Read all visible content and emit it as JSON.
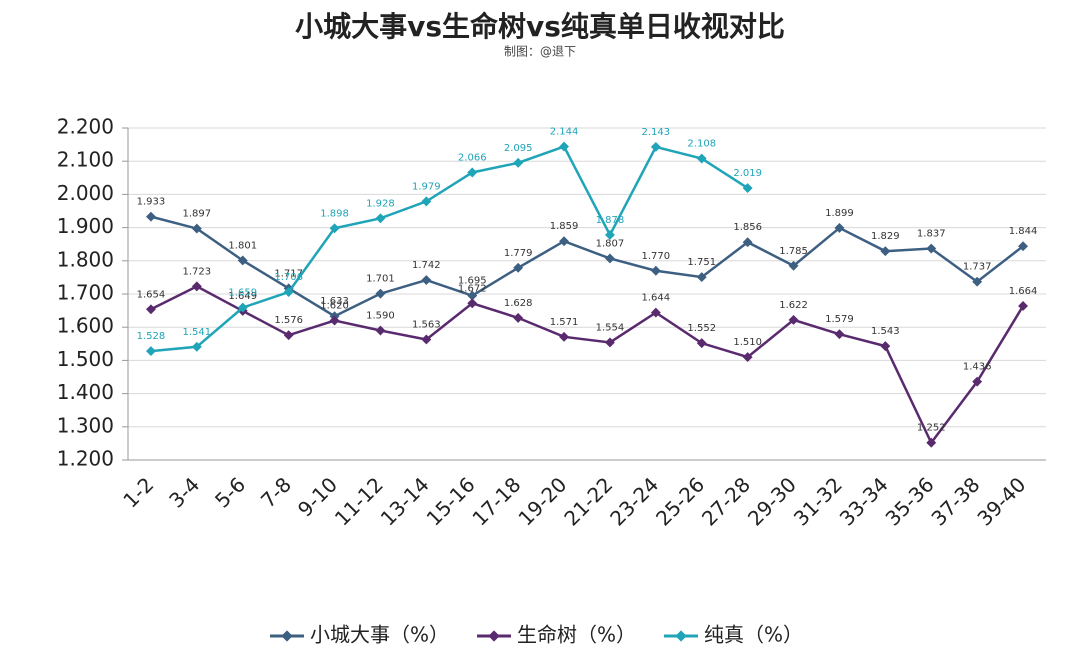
{
  "chart_data": {
    "type": "line",
    "title": "小城大事vs生命树vs纯真单日收视对比",
    "subtitle": "制图：@退下",
    "categories": [
      "1-2",
      "3-4",
      "5-6",
      "7-8",
      "9-10",
      "11-12",
      "13-14",
      "15-16",
      "17-18",
      "19-20",
      "21-22",
      "23-24",
      "25-26",
      "27-28",
      "29-30",
      "31-32",
      "33-34",
      "35-36",
      "37-38",
      "39-40"
    ],
    "series": [
      {
        "name": "小城大事（%）",
        "color": "#3d5f82",
        "values": [
          1.933,
          1.897,
          1.801,
          1.717,
          1.633,
          1.701,
          1.742,
          1.695,
          1.779,
          1.859,
          1.807,
          1.77,
          1.751,
          1.856,
          1.785,
          1.899,
          1.829,
          1.837,
          1.737,
          1.844
        ],
        "value_labels": [
          "1.933",
          "1.897",
          "1.801",
          "1.717",
          "1.633",
          "1.701",
          "1.742",
          "1.695",
          "1.779",
          "1.859",
          "1.807",
          "1.770",
          "1.751",
          "1.856",
          "1.785",
          "1.899",
          "1.829",
          "1.837",
          "1.737",
          "1.844"
        ]
      },
      {
        "name": "生命树（%）",
        "color": "#5a2a6e",
        "values": [
          1.654,
          1.723,
          1.649,
          1.576,
          1.62,
          1.59,
          1.563,
          1.672,
          1.628,
          1.571,
          1.554,
          1.644,
          1.552,
          1.51,
          1.622,
          1.579,
          1.543,
          1.252,
          1.436,
          1.664
        ],
        "value_labels": [
          "1.654",
          "1.723",
          "1.649",
          "1.576",
          "1.620",
          "1.590",
          "1.563",
          "1.672",
          "1.628",
          "1.571",
          "1.554",
          "1.644",
          "1.552",
          "1.510",
          "1.622",
          "1.579",
          "1.543",
          "1.252",
          "1.436",
          "1.664"
        ]
      },
      {
        "name": "纯真（%）",
        "color": "#1fa4b8",
        "values": [
          1.528,
          1.541,
          1.659,
          1.706,
          1.898,
          1.928,
          1.979,
          2.066,
          2.095,
          2.144,
          1.878,
          2.143,
          2.108,
          2.019,
          null,
          null,
          null,
          null,
          null,
          null
        ],
        "value_labels": [
          "1.528",
          "1.541",
          "1.659",
          "1.706",
          "1.898",
          "1.928",
          "1.979",
          "2.066",
          "2.095",
          "2.144",
          "1.878",
          "2.143",
          "2.108",
          "2.019",
          null,
          null,
          null,
          null,
          null,
          null
        ]
      }
    ],
    "ylim": [
      1.2,
      2.2
    ],
    "yticks": [
      {
        "value": 1.2,
        "label": "1.200"
      },
      {
        "value": 1.3,
        "label": "1.300"
      },
      {
        "value": 1.4,
        "label": "1.400"
      },
      {
        "value": 1.5,
        "label": "1.500"
      },
      {
        "value": 1.6,
        "label": "1.600"
      },
      {
        "value": 1.7,
        "label": "1.700"
      },
      {
        "value": 1.8,
        "label": "1.800"
      },
      {
        "value": 1.9,
        "label": "1.900"
      },
      {
        "value": 2.0,
        "label": "2.000"
      },
      {
        "value": 2.1,
        "label": "2.100"
      },
      {
        "value": 2.2,
        "label": "2.200"
      }
    ],
    "grid": true,
    "legend": "bottom"
  }
}
